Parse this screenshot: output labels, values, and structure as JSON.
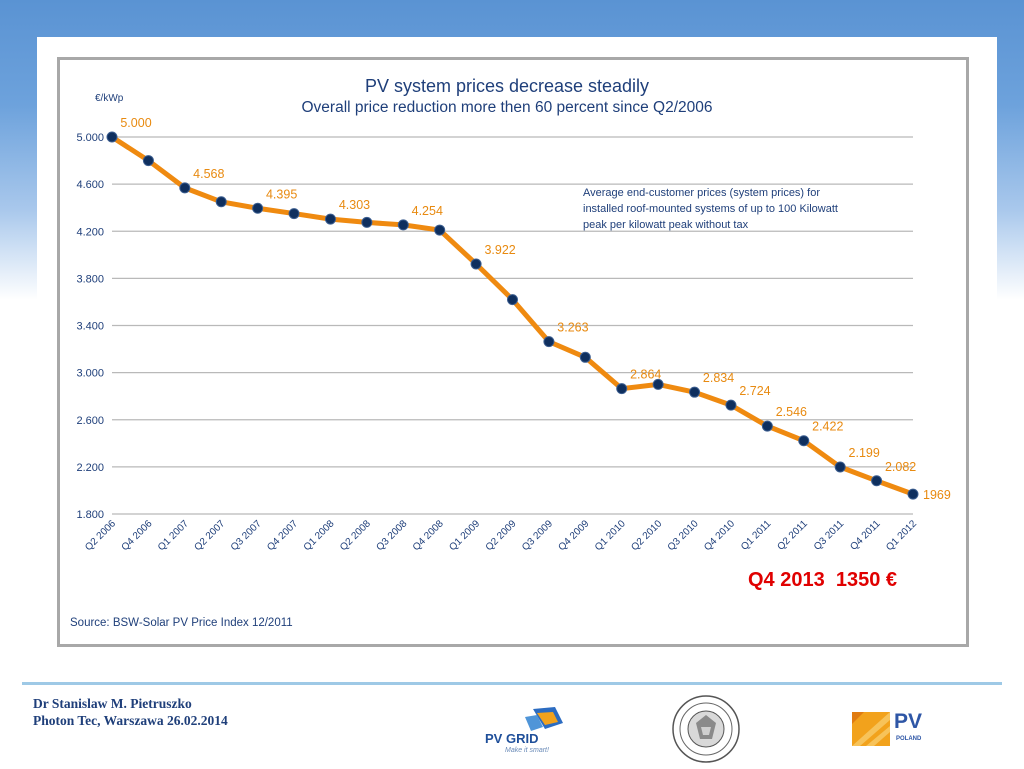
{
  "chart_data": {
    "type": "line",
    "title": "PV system prices decrease steadily",
    "subtitle": "Overall price reduction more then 60 percent  since Q2/2006",
    "ylabel": "€/kWp",
    "ylim": [
      1800,
      5000
    ],
    "y_ticks": [
      {
        "value": 5000,
        "label": "5.000"
      },
      {
        "value": 4600,
        "label": "4.600"
      },
      {
        "value": 4200,
        "label": "4.200"
      },
      {
        "value": 3800,
        "label": "3.800"
      },
      {
        "value": 3400,
        "label": "3.400"
      },
      {
        "value": 3000,
        "label": "3.000"
      },
      {
        "value": 2600,
        "label": "2.600"
      },
      {
        "value": 2200,
        "label": "2.200"
      },
      {
        "value": 1800,
        "label": "1.800"
      }
    ],
    "categories": [
      "Q2 2006",
      "Q4 2006",
      "Q1 2007",
      "Q2 2007",
      "Q3 2007",
      "Q4 2007",
      "Q1 2008",
      "Q2 2008",
      "Q3 2008",
      "Q4 2008",
      "Q1 2009",
      "Q2 2009",
      "Q3 2009",
      "Q4 2009",
      "Q1 2010",
      "Q2 2010",
      "Q3 2010",
      "Q4 2010",
      "Q1 2011",
      "Q2 2011",
      "Q3 2011",
      "Q4 2011",
      "Q1 2012"
    ],
    "values": [
      5000,
      4800,
      4568,
      4450,
      4395,
      4350,
      4303,
      4275,
      4254,
      4210,
      3922,
      3620,
      3263,
      3130,
      2864,
      2900,
      2834,
      2724,
      2546,
      2422,
      2199,
      2082,
      1969
    ],
    "data_labels": [
      {
        "index": 0,
        "text": "5.000",
        "pos": "above"
      },
      {
        "index": 2,
        "text": "4.568",
        "pos": "above"
      },
      {
        "index": 4,
        "text": "4.395",
        "pos": "above"
      },
      {
        "index": 6,
        "text": "4.303",
        "pos": "above"
      },
      {
        "index": 8,
        "text": "4.254",
        "pos": "above"
      },
      {
        "index": 10,
        "text": "3.922",
        "pos": "above"
      },
      {
        "index": 12,
        "text": "3.263",
        "pos": "above"
      },
      {
        "index": 14,
        "text": "2.864",
        "pos": "above"
      },
      {
        "index": 16,
        "text": "2.834",
        "pos": "above"
      },
      {
        "index": 17,
        "text": "2.724",
        "pos": "above"
      },
      {
        "index": 18,
        "text": "2.546",
        "pos": "above"
      },
      {
        "index": 19,
        "text": "2.422",
        "pos": "above"
      },
      {
        "index": 20,
        "text": "2.199",
        "pos": "above"
      },
      {
        "index": 21,
        "text": "2.082",
        "pos": "above"
      },
      {
        "index": 22,
        "text": "1969",
        "pos": "right"
      }
    ],
    "annotation": [
      "Average end-customer prices (system prices) for",
      "installed roof-mounted systems of up to 100 Kilowatt",
      "peak per kilowatt peak without tax"
    ],
    "source": "Source: BSW-Solar  PV Price Index 12/2011",
    "grid": true,
    "line_color": "#ef8a10",
    "marker_color": "#0f2f5e",
    "label_color": "#e88a10",
    "text_color": "#1f3f7a"
  },
  "note": "Q4 2013  1350 €",
  "footer": {
    "author": "Dr Stanislaw M. Pietruszko",
    "affiliation": "Photon Tec, Warszawa 26.02.2014"
  },
  "logos": {
    "pvgrid_name": "PV GRID",
    "pvgrid_tagline": "Make it smart!",
    "pvpoland_name": "PV",
    "pvpoland_sub": "POLAND"
  }
}
